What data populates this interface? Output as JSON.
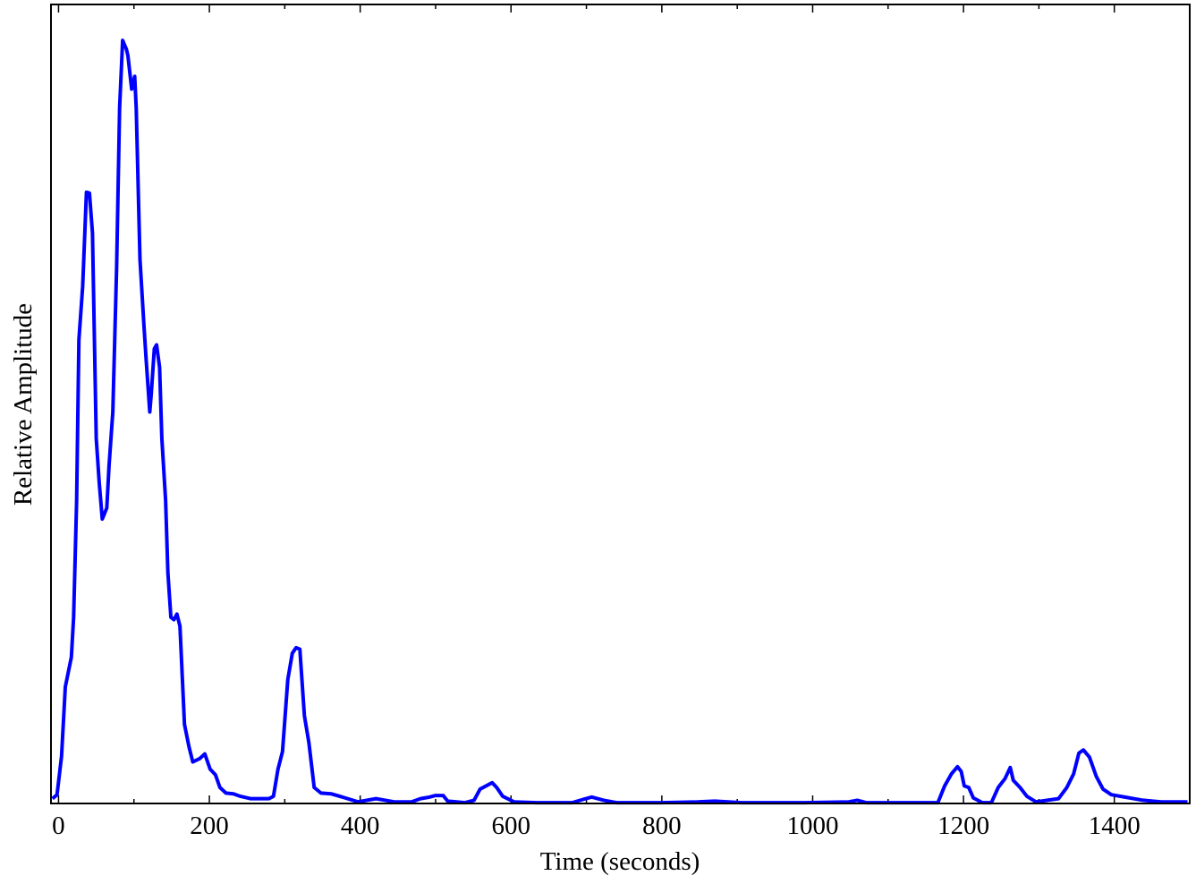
{
  "chart_data": {
    "type": "line",
    "x_label": "Time (seconds)",
    "y_label": "Relative Amplitude",
    "xlim": [
      -10,
      1500
    ],
    "ylim": [
      0,
      1
    ],
    "xticks": [
      0,
      200,
      400,
      600,
      800,
      1000,
      1200,
      1400
    ],
    "xminorticks": [
      100,
      300,
      500,
      700,
      900,
      1100,
      1300,
      1500
    ],
    "grid": false,
    "series": [
      {
        "color": "#0000ff",
        "x": [
          -8,
          -2,
          4,
          9,
          17,
          20,
          24,
          27,
          32,
          37,
          41,
          45,
          50,
          54,
          58,
          64,
          67,
          72,
          77,
          81,
          85,
          90,
          92,
          97,
          101,
          103,
          108,
          113,
          116,
          121,
          123,
          127,
          130,
          134,
          137,
          142,
          145,
          149,
          153,
          157,
          161,
          167,
          173,
          178,
          187,
          194,
          201,
          208,
          214,
          222,
          232,
          241,
          255,
          279,
          285,
          291,
          297,
          304,
          310,
          315,
          320,
          326,
          332,
          339,
          348,
          362,
          380,
          397,
          421,
          445,
          468,
          480,
          492,
          500,
          510,
          516,
          539,
          551,
          559,
          575,
          581,
          589,
          604,
          634,
          681,
          699,
          707,
          723,
          740,
          799,
          847,
          870,
          906,
          989,
          1048,
          1059,
          1071,
          1166,
          1175,
          1184,
          1192,
          1197,
          1201,
          1207,
          1213,
          1225,
          1237,
          1246,
          1255,
          1262,
          1266,
          1275,
          1284,
          1296,
          1326,
          1337,
          1346,
          1353,
          1359,
          1367,
          1376,
          1385,
          1396,
          1414,
          1438,
          1462,
          1497
        ],
        "values": [
          0.006,
          0.011,
          0.059,
          0.146,
          0.183,
          0.233,
          0.379,
          0.58,
          0.647,
          0.765,
          0.764,
          0.714,
          0.457,
          0.401,
          0.356,
          0.37,
          0.423,
          0.49,
          0.67,
          0.871,
          0.955,
          0.944,
          0.936,
          0.894,
          0.91,
          0.871,
          0.681,
          0.602,
          0.558,
          0.49,
          0.513,
          0.569,
          0.574,
          0.546,
          0.457,
          0.379,
          0.289,
          0.233,
          0.23,
          0.237,
          0.222,
          0.099,
          0.071,
          0.052,
          0.056,
          0.062,
          0.043,
          0.036,
          0.02,
          0.013,
          0.012,
          0.009,
          0.006,
          0.006,
          0.009,
          0.043,
          0.065,
          0.155,
          0.188,
          0.195,
          0.193,
          0.11,
          0.076,
          0.02,
          0.013,
          0.012,
          0.007,
          0.002,
          0.006,
          0.002,
          0.002,
          0.006,
          0.008,
          0.01,
          0.01,
          0.003,
          0.001,
          0.004,
          0.018,
          0.026,
          0.02,
          0.009,
          0.002,
          0.001,
          0.001,
          0.006,
          0.008,
          0.004,
          0.001,
          0.001,
          0.002,
          0.003,
          0.001,
          0.001,
          0.002,
          0.004,
          0.001,
          0.001,
          0.022,
          0.037,
          0.046,
          0.04,
          0.022,
          0.02,
          0.007,
          0.001,
          0.001,
          0.02,
          0.031,
          0.045,
          0.029,
          0.02,
          0.009,
          0.002,
          0.006,
          0.02,
          0.037,
          0.063,
          0.067,
          0.058,
          0.034,
          0.018,
          0.011,
          0.008,
          0.004,
          0.002,
          0.002
        ]
      }
    ]
  }
}
